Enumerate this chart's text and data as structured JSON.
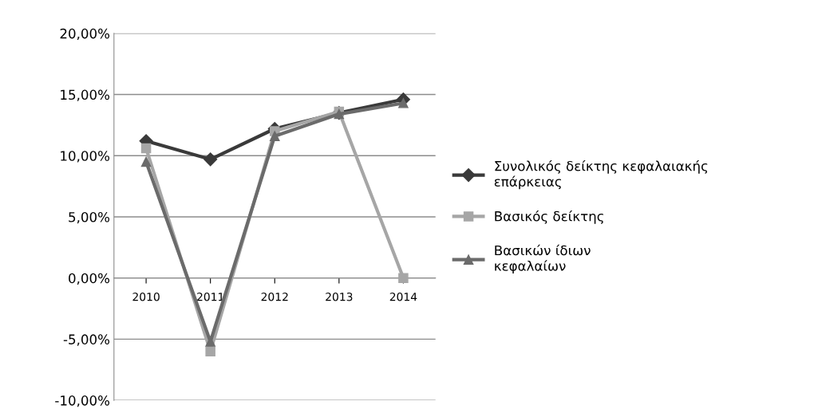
{
  "chart_data": {
    "type": "line",
    "categories": [
      "2010",
      "2011",
      "2012",
      "2013",
      "2014"
    ],
    "series": [
      {
        "name": "Συνολικός δείκτης κεφαλαιακής επάρκειας",
        "color": "#3a3a3a",
        "marker": "diamond",
        "values": [
          11.2,
          9.7,
          12.2,
          13.5,
          14.6
        ]
      },
      {
        "name": "Βασικός δείκτης",
        "color": "#a6a6a6",
        "marker": "square",
        "values": [
          10.6,
          -6.0,
          12.0,
          13.6,
          0.0
        ]
      },
      {
        "name": "Βασικών ίδιων κεφαλαίων",
        "color": "#6b6b6b",
        "marker": "triangle",
        "values": [
          9.5,
          -5.2,
          11.6,
          13.4,
          14.3
        ]
      }
    ],
    "ylim": [
      -10,
      20
    ],
    "yticks": [
      {
        "value": -10,
        "label": "-10,00%"
      },
      {
        "value": -5,
        "label": "-5,00%"
      },
      {
        "value": 0,
        "label": "0,00%"
      },
      {
        "value": 5,
        "label": "5,00%"
      },
      {
        "value": 10,
        "label": "10,00%"
      },
      {
        "value": 15,
        "label": "15,00%"
      },
      {
        "value": 20,
        "label": "20,00%"
      }
    ],
    "grid": "y",
    "legend": "right",
    "line_style": "solid"
  }
}
